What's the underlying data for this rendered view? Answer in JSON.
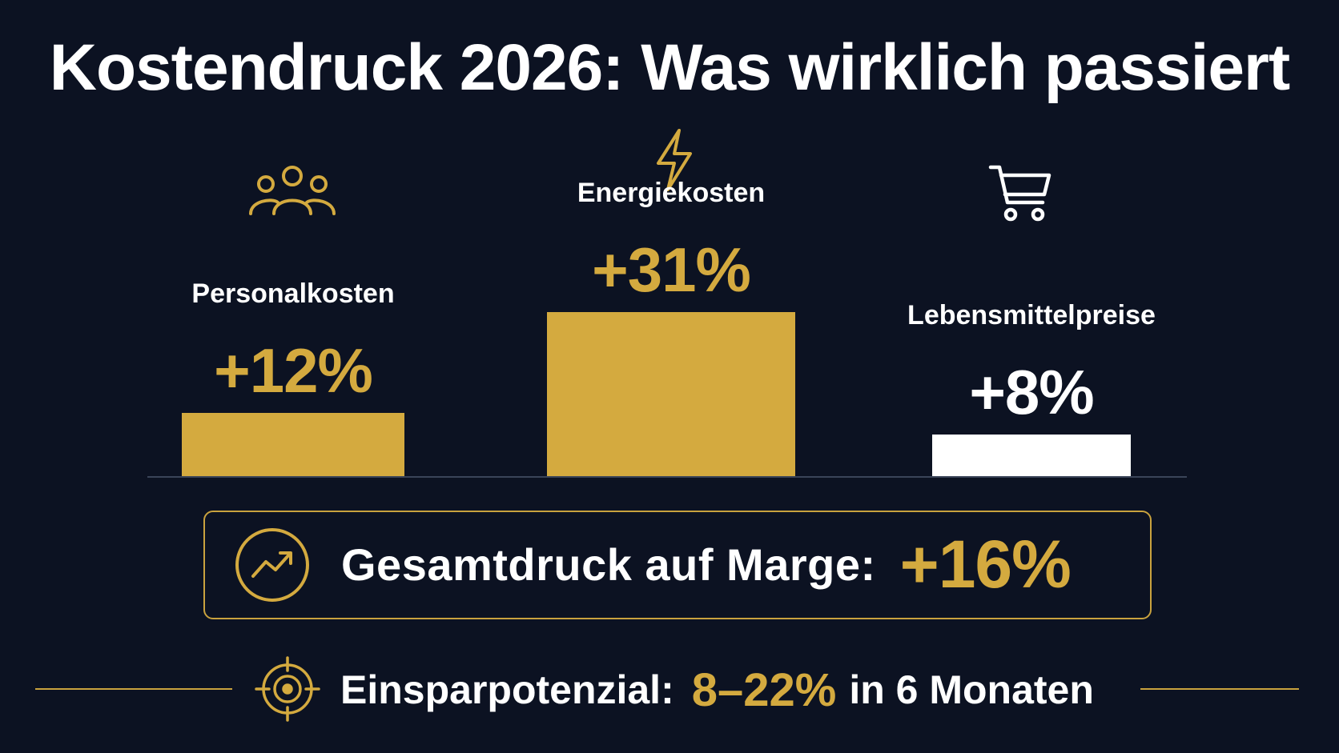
{
  "title": "Kostendruck 2026: Was wirklich passiert",
  "colors": {
    "background": "#0c1222",
    "gold": "#d4aa3f",
    "white": "#ffffff"
  },
  "chart_data": {
    "type": "bar",
    "title": "Kostendruck 2026: Was wirklich passiert",
    "categories": [
      "Personalkosten",
      "Energiekosten",
      "Lebensmittelpreise"
    ],
    "values": [
      12,
      31,
      8
    ],
    "value_labels": [
      "+12%",
      "+31%",
      "+8%"
    ],
    "category_icons": [
      "people-icon",
      "lightning-icon",
      "shopping-cart-icon"
    ],
    "bar_colors": [
      "#d4aa3f",
      "#d4aa3f",
      "#ffffff"
    ],
    "label_colors": [
      "#d4aa3f",
      "#d4aa3f",
      "#ffffff"
    ],
    "xlabel": "",
    "ylabel": "",
    "grid": false,
    "legend": "none"
  },
  "summary": {
    "icon": "trend-up-icon",
    "label": "Gesamtdruck auf Marge:",
    "value": "+16%"
  },
  "footer": {
    "icon": "target-icon",
    "label": "Einsparpotenzial:",
    "value": "8–22%",
    "suffix": "in 6 Monaten"
  }
}
